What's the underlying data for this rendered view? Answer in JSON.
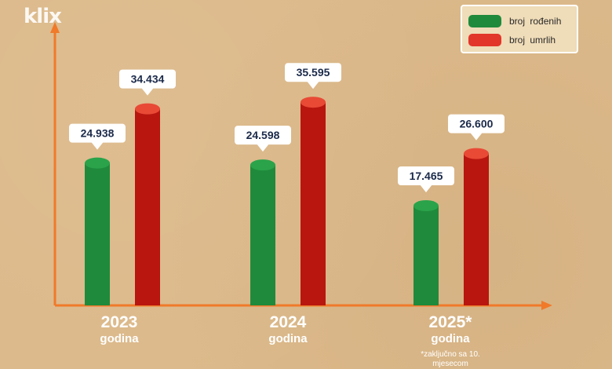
{
  "logo": "klix",
  "legend": {
    "position": "top-right",
    "items": [
      {
        "label": "broj  rođenih",
        "color": "#1f8a3c"
      },
      {
        "label": "broj  umrlih",
        "color": "#e2362a"
      }
    ]
  },
  "chart_data": {
    "type": "bar",
    "categories": [
      "2023",
      "2024",
      "2025*"
    ],
    "category_sub": [
      "godina",
      "godina",
      "godina"
    ],
    "notes": [
      "",
      "",
      "*zaključno sa 10. mjesecom"
    ],
    "series": [
      {
        "name": "broj  rođenih",
        "values": [
          24938,
          24598,
          17465
        ],
        "labels": [
          "24.938",
          "24.598",
          "17.465"
        ],
        "color": "#1f8a3c"
      },
      {
        "name": "broj  umrlih",
        "values": [
          34434,
          35595,
          26600
        ],
        "labels": [
          "34.434",
          "35.595",
          "26.600"
        ],
        "color": "#b8160f"
      }
    ],
    "title": "",
    "xlabel": "",
    "ylabel": "",
    "ylim": [
      0,
      48000
    ],
    "grid": false,
    "axis_color": "#f07a2a"
  }
}
